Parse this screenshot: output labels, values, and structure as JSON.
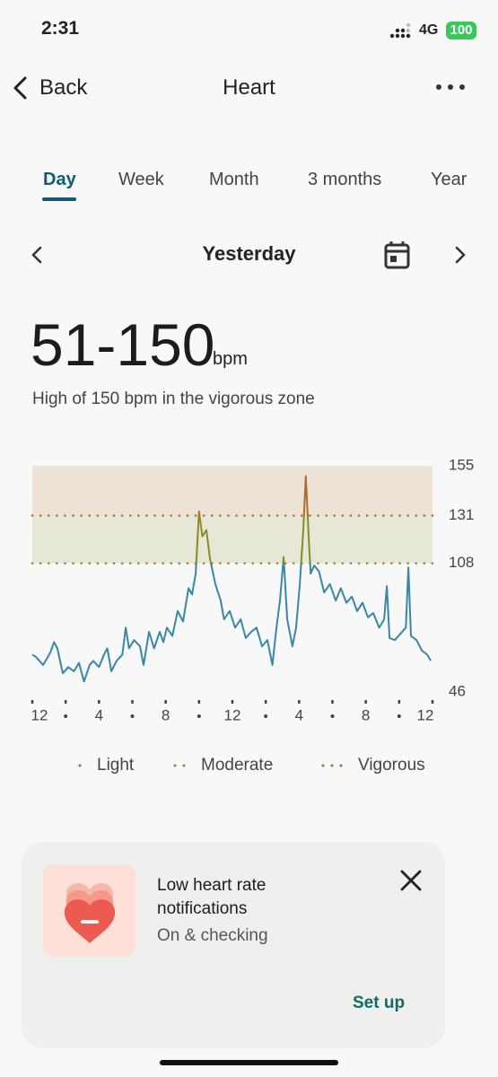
{
  "status": {
    "time": "2:31",
    "network": "4G",
    "battery": "100"
  },
  "nav": {
    "back": "Back",
    "title": "Heart"
  },
  "tabs": [
    "Day",
    "Week",
    "Month",
    "3 months",
    "Year"
  ],
  "date": "Yesterday",
  "summary": {
    "range": "51-150",
    "unit": "bpm",
    "description": "High of 150 bpm in the vigorous zone"
  },
  "chart_data": {
    "type": "line",
    "x": [
      0,
      0.2,
      0.65,
      1.08,
      1.3,
      1.5,
      1.83,
      2.15,
      2.5,
      2.8,
      3.1,
      3.44,
      3.66,
      4.0,
      4.3,
      4.5,
      4.74,
      5.06,
      5.4,
      5.6,
      5.8,
      6.1,
      6.46,
      6.67,
      7.0,
      7.3,
      7.64,
      7.86,
      8.07,
      8.4,
      8.72,
      9.04,
      9.37,
      9.58,
      9.8,
      10.0,
      10.2,
      10.44,
      10.66,
      10.98,
      11.3,
      11.5,
      11.84,
      12.16,
      12.5,
      12.8,
      13.13,
      13.45,
      13.78,
      14.1,
      14.4,
      14.64,
      14.85,
      15.07,
      15.29,
      15.6,
      15.82,
      16.04,
      16.25,
      16.4,
      16.58,
      16.69,
      16.9,
      17.2,
      17.5,
      17.85,
      18.2,
      18.5,
      18.84,
      19.16,
      19.48,
      19.8,
      20.13,
      20.45,
      20.8,
      21.1,
      21.26,
      21.42,
      21.74,
      22.07,
      22.4,
      22.55,
      22.71,
      23.04,
      23.36,
      23.68,
      23.9
    ],
    "series": [
      {
        "values": [
          64,
          63,
          59,
          65,
          70,
          67,
          55,
          58,
          56,
          60,
          51,
          59,
          61,
          58,
          64,
          67,
          56,
          61,
          64,
          77,
          67,
          71,
          68,
          59,
          75,
          67,
          75,
          70,
          77,
          73,
          85,
          80,
          96,
          93,
          103,
          133,
          121,
          124,
          110,
          98,
          90,
          81,
          85,
          77,
          81,
          72,
          75,
          77,
          68,
          71,
          59,
          77,
          90,
          111,
          81,
          68,
          77,
          98,
          124,
          150,
          120,
          103,
          107,
          104,
          94,
          98,
          90,
          96,
          89,
          92,
          85,
          89,
          82,
          84,
          77,
          81,
          97,
          72,
          71,
          74,
          77,
          106,
          73,
          71,
          66,
          64,
          61
        ]
      }
    ],
    "xlim": [
      0,
      24
    ],
    "xticks": [
      {
        "value": 0,
        "label": "12"
      },
      {
        "value": 4,
        "label": "4"
      },
      {
        "value": 8,
        "label": "8"
      },
      {
        "value": 12,
        "label": "12"
      },
      {
        "value": 16,
        "label": "4"
      },
      {
        "value": 20,
        "label": "8"
      },
      {
        "value": 24,
        "label": "12"
      }
    ],
    "xminor": [
      2,
      6,
      10,
      14,
      18,
      22
    ],
    "ylim": [
      46,
      155
    ],
    "yticks": [
      46,
      108,
      131,
      155
    ],
    "zones": [
      {
        "name": "Light",
        "from": 46,
        "to": 108,
        "line_color": "#3a86a6"
      },
      {
        "name": "Moderate",
        "from": 108,
        "to": 131,
        "line_color": "#8a8a26",
        "band_color": "#e6e7d7"
      },
      {
        "name": "Vigorous",
        "from": 131,
        "to": 155,
        "line_color": "#b3682c",
        "band_color": "#ece3d6"
      }
    ]
  },
  "card": {
    "title": "Low heart rate notifications",
    "status": "On & checking",
    "action": "Set up"
  }
}
